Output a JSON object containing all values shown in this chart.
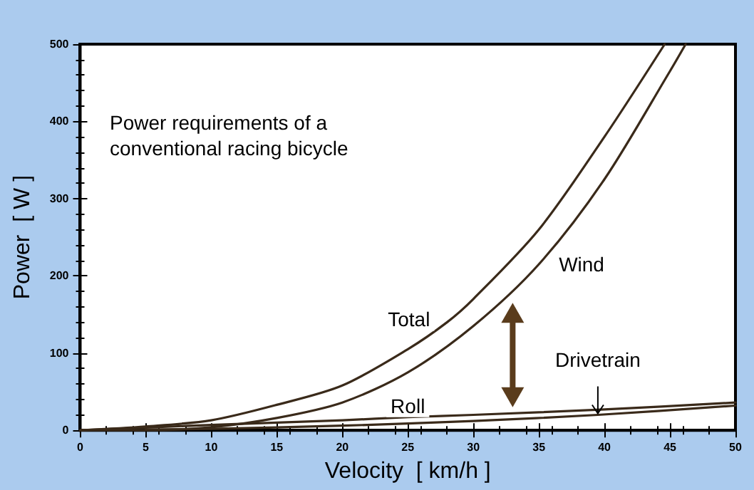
{
  "chart_data": {
    "type": "line",
    "title": "Power requirements of a conventional racing bicycle",
    "xlabel": "Velocity  [ km/h ]",
    "ylabel": "Power  [ W ]",
    "xlim": [
      0,
      50
    ],
    "ylim": [
      0,
      500
    ],
    "xticks": [
      0,
      5,
      10,
      15,
      20,
      25,
      30,
      35,
      40,
      45,
      50
    ],
    "yticks": [
      0,
      100,
      200,
      300,
      400,
      500
    ],
    "grid": false,
    "legend": false,
    "marker": "none",
    "line_style": "solid",
    "series": [
      {
        "name": "Total",
        "color": "#3a2a1a",
        "x": [
          0,
          5,
          10,
          15,
          20,
          25,
          28,
          30,
          35,
          40,
          44.6
        ],
        "values": [
          0,
          5,
          13,
          33,
          58,
          105,
          140,
          170,
          260,
          380,
          500
        ]
      },
      {
        "name": "Wind",
        "color": "#3a2a1a",
        "x": [
          0,
          5,
          10,
          15,
          20,
          25,
          30,
          35,
          40,
          45,
          46.2
        ],
        "values": [
          0,
          0,
          4,
          16,
          36,
          75,
          135,
          215,
          325,
          465,
          500
        ]
      },
      {
        "name": "Roll",
        "color": "#3a2a1a",
        "x": [
          0,
          10,
          20,
          25,
          30,
          40,
          50
        ],
        "values": [
          0,
          7,
          13,
          17,
          20,
          27,
          36
        ]
      },
      {
        "name": "Drivetrain",
        "color": "#3a2a1a",
        "x": [
          5,
          10,
          20,
          30,
          39.5,
          50
        ],
        "values": [
          1,
          2,
          6,
          12,
          20,
          32
        ]
      }
    ]
  }
}
